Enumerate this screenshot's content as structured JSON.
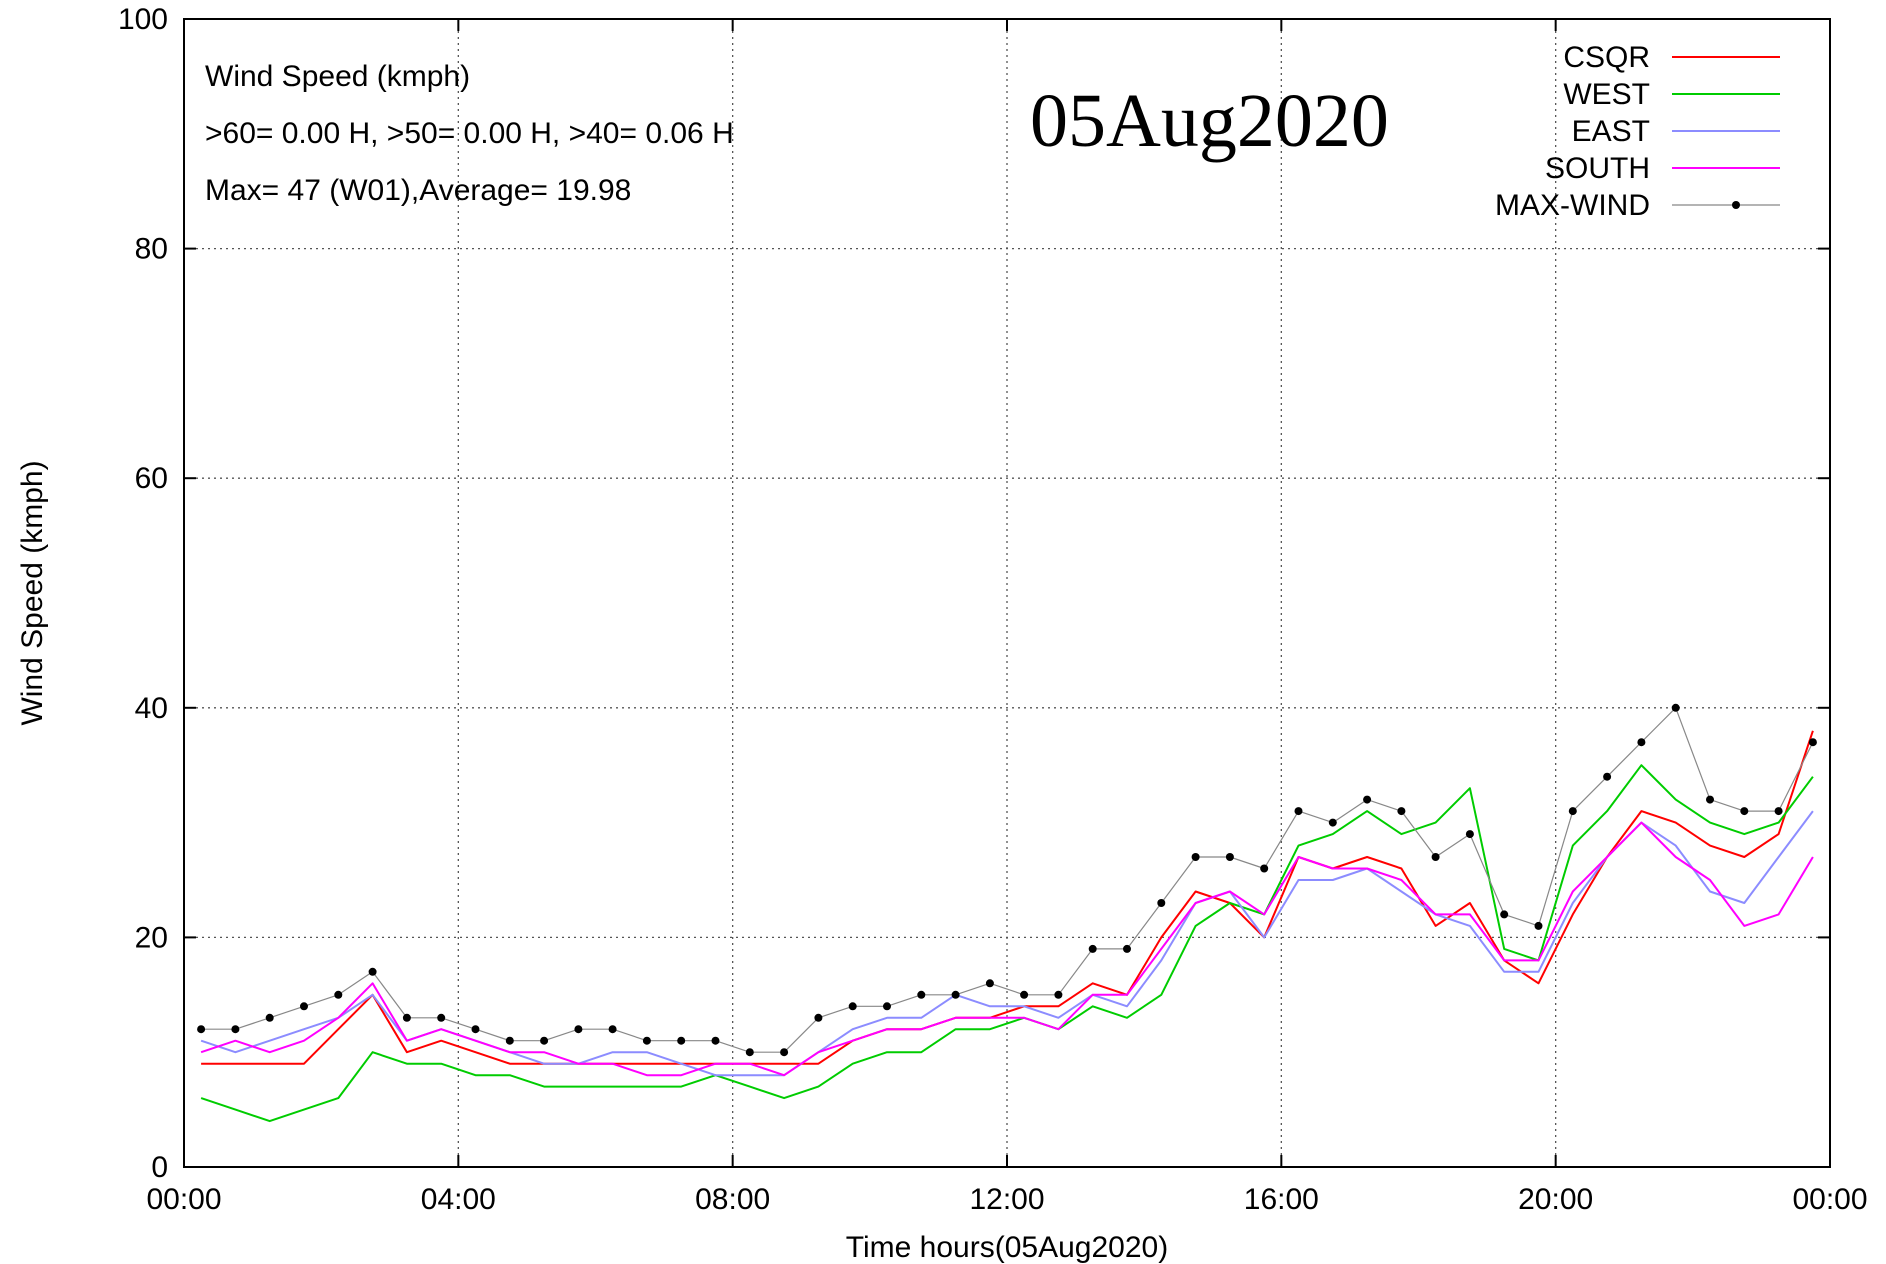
{
  "chart_data": {
    "type": "line",
    "title": "",
    "xlabel": "Time hours(05Aug2020)",
    "ylabel": "Wind Speed (kmph)",
    "xlim": [
      "00:00",
      "24:00"
    ],
    "ylim": [
      0,
      100
    ],
    "x_tick_labels": [
      "00:00",
      "04:00",
      "08:00",
      "12:00",
      "16:00",
      "20:00",
      "00:00"
    ],
    "y_ticks": [
      0,
      20,
      40,
      60,
      80,
      100
    ],
    "grid": true,
    "legend_position": "top-right",
    "date_stamp": "05Aug2020",
    "annotations": [
      "Wind Speed (kmph)",
      ">60=  0.00 H, >50=  0.00 H, >40=  0.06 H",
      "Max= 47 (W01),Average= 19.98"
    ],
    "x_hours": [
      0.25,
      0.75,
      1.25,
      1.75,
      2.25,
      2.75,
      3.25,
      3.75,
      4.25,
      4.75,
      5.25,
      5.75,
      6.25,
      6.75,
      7.25,
      7.75,
      8.25,
      8.75,
      9.25,
      9.75,
      10.25,
      10.75,
      11.25,
      11.75,
      12.25,
      12.75,
      13.25,
      13.75,
      14.25,
      14.75,
      15.25,
      15.75,
      16.25,
      16.75,
      17.25,
      17.75,
      18.25,
      18.75,
      19.25,
      19.75,
      20.25,
      20.75,
      21.25,
      21.75,
      22.25,
      22.75,
      23.25,
      23.75
    ],
    "series": [
      {
        "name": "CSQR",
        "color": "#ff0000",
        "values": [
          9,
          9,
          9,
          9,
          12,
          15,
          10,
          11,
          10,
          9,
          9,
          9,
          9,
          9,
          9,
          9,
          9,
          9,
          9,
          11,
          12,
          12,
          13,
          13,
          14,
          14,
          16,
          15,
          20,
          24,
          23,
          20,
          27,
          26,
          27,
          26,
          21,
          23,
          18,
          16,
          22,
          27,
          31,
          30,
          28,
          27,
          29,
          38
        ]
      },
      {
        "name": "WEST",
        "color": "#00cc00",
        "values": [
          6,
          5,
          4,
          5,
          6,
          10,
          9,
          9,
          8,
          8,
          7,
          7,
          7,
          7,
          7,
          8,
          7,
          6,
          7,
          9,
          10,
          10,
          12,
          12,
          13,
          12,
          14,
          13,
          15,
          21,
          23,
          22,
          28,
          29,
          31,
          29,
          30,
          33,
          19,
          18,
          28,
          31,
          35,
          32,
          30,
          29,
          30,
          34
        ]
      },
      {
        "name": "EAST",
        "color": "#8c8cff",
        "values": [
          11,
          10,
          11,
          12,
          13,
          15,
          11,
          12,
          11,
          10,
          9,
          9,
          10,
          10,
          9,
          8,
          8,
          8,
          10,
          12,
          13,
          13,
          15,
          14,
          14,
          13,
          15,
          14,
          18,
          23,
          24,
          20,
          25,
          25,
          26,
          24,
          22,
          21,
          17,
          17,
          23,
          27,
          30,
          28,
          24,
          23,
          27,
          31
        ]
      },
      {
        "name": "SOUTH",
        "color": "#ff00ff",
        "values": [
          10,
          11,
          10,
          11,
          13,
          16,
          11,
          12,
          11,
          10,
          10,
          9,
          9,
          8,
          8,
          9,
          9,
          8,
          10,
          11,
          12,
          12,
          13,
          13,
          13,
          12,
          15,
          15,
          19,
          23,
          24,
          22,
          27,
          26,
          26,
          25,
          22,
          22,
          18,
          18,
          24,
          27,
          30,
          27,
          25,
          21,
          22,
          27
        ]
      },
      {
        "name": "MAX-WIND",
        "color": "#000000",
        "values": [
          12,
          12,
          13,
          14,
          15,
          17,
          13,
          13,
          12,
          11,
          11,
          12,
          12,
          11,
          11,
          11,
          10,
          10,
          13,
          14,
          14,
          15,
          15,
          16,
          15,
          15,
          19,
          19,
          23,
          27,
          27,
          26,
          31,
          30,
          32,
          31,
          27,
          29,
          22,
          21,
          31,
          34,
          37,
          40,
          32,
          31,
          31,
          37
        ]
      }
    ]
  }
}
